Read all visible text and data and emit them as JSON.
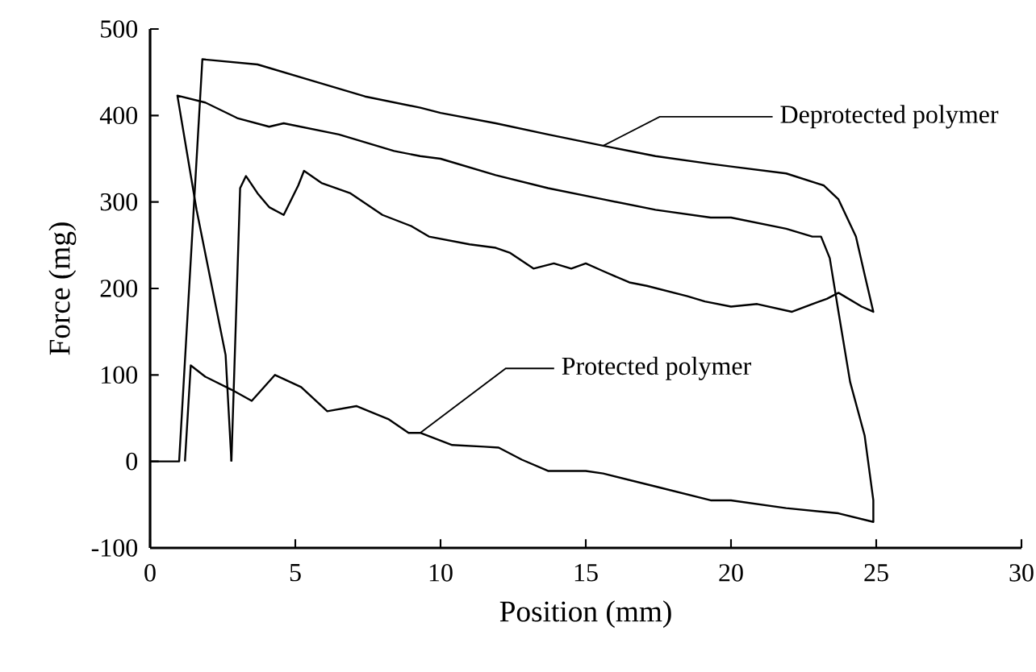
{
  "chart_data": {
    "type": "line",
    "xlabel": "Position (mm)",
    "ylabel": "Force (mg)",
    "xlim": [
      0,
      30
    ],
    "xticks": [
      0,
      5,
      10,
      15,
      20,
      25,
      30
    ],
    "ylim": [
      -100,
      500
    ],
    "yticks": [
      -100,
      0,
      100,
      200,
      300,
      400,
      500
    ],
    "grid": false,
    "legend": false,
    "marker": "none",
    "line_style": "solid",
    "series": [
      {
        "name": "Deprotected polymer",
        "color": "#000000",
        "x": [
          0,
          1.0,
          1.8,
          3.7,
          5.6,
          7.4,
          9.3,
          10.0,
          11.9,
          13.7,
          15.6,
          17.4,
          19.3,
          20.0,
          21.9,
          23.2,
          23.7,
          24.3,
          24.6,
          24.9,
          24.5,
          23.7,
          23.3,
          22.8,
          22.1,
          20.9,
          20.0,
          19.1,
          18.5,
          17.1,
          16.5,
          15.6,
          15.0,
          14.5,
          13.9,
          13.2,
          12.4,
          11.9,
          11.0,
          9.6,
          9.0,
          8.0,
          6.9,
          5.9,
          5.3,
          5.1,
          4.6,
          4.1,
          3.7,
          3.3,
          3.1,
          2.8
        ],
        "values": [
          0,
          0,
          465,
          459,
          440,
          422,
          409,
          403,
          391,
          378,
          365,
          353,
          344,
          341,
          333,
          319,
          303,
          260,
          216,
          173,
          179,
          195,
          188,
          182,
          173,
          182,
          179,
          185,
          191,
          203,
          207,
          220,
          229,
          223,
          229,
          223,
          241,
          247,
          251,
          260,
          272,
          285,
          310,
          322,
          336,
          319,
          285,
          294,
          310,
          330,
          316,
          0
        ]
      },
      {
        "name": "Protected polymer",
        "color": "#000000",
        "x": [
          1.2,
          1.4,
          1.9,
          2.8,
          3.5,
          4.3,
          5.2,
          6.1,
          7.1,
          8.2,
          8.9,
          9.3,
          10.4,
          11.5,
          12.0,
          12.8,
          13.7,
          15.0,
          15.6,
          17.4,
          19.3,
          20.0,
          21.9,
          23.7,
          24.9,
          24.9,
          24.6,
          24.1,
          23.7,
          23.4,
          23.1,
          22.8,
          21.9,
          20.0,
          19.3,
          17.4,
          15.6,
          13.7,
          11.9,
          10.0,
          9.3,
          8.4,
          6.5,
          4.6,
          4.1,
          3.0,
          1.9,
          0.94,
          1.6,
          2.6,
          2.8
        ],
        "values": [
          0,
          111,
          98,
          83,
          70,
          100,
          86,
          58,
          64,
          49,
          33,
          33,
          19,
          17,
          16,
          2,
          -11,
          -11,
          -14,
          -29,
          -45,
          -45,
          -54,
          -60,
          -70,
          -45,
          30,
          92,
          173,
          235,
          260,
          260,
          269,
          282,
          282,
          291,
          303,
          316,
          331,
          350,
          353,
          359,
          378,
          391,
          387,
          397,
          415,
          423,
          291,
          123,
          0
        ]
      }
    ]
  }
}
